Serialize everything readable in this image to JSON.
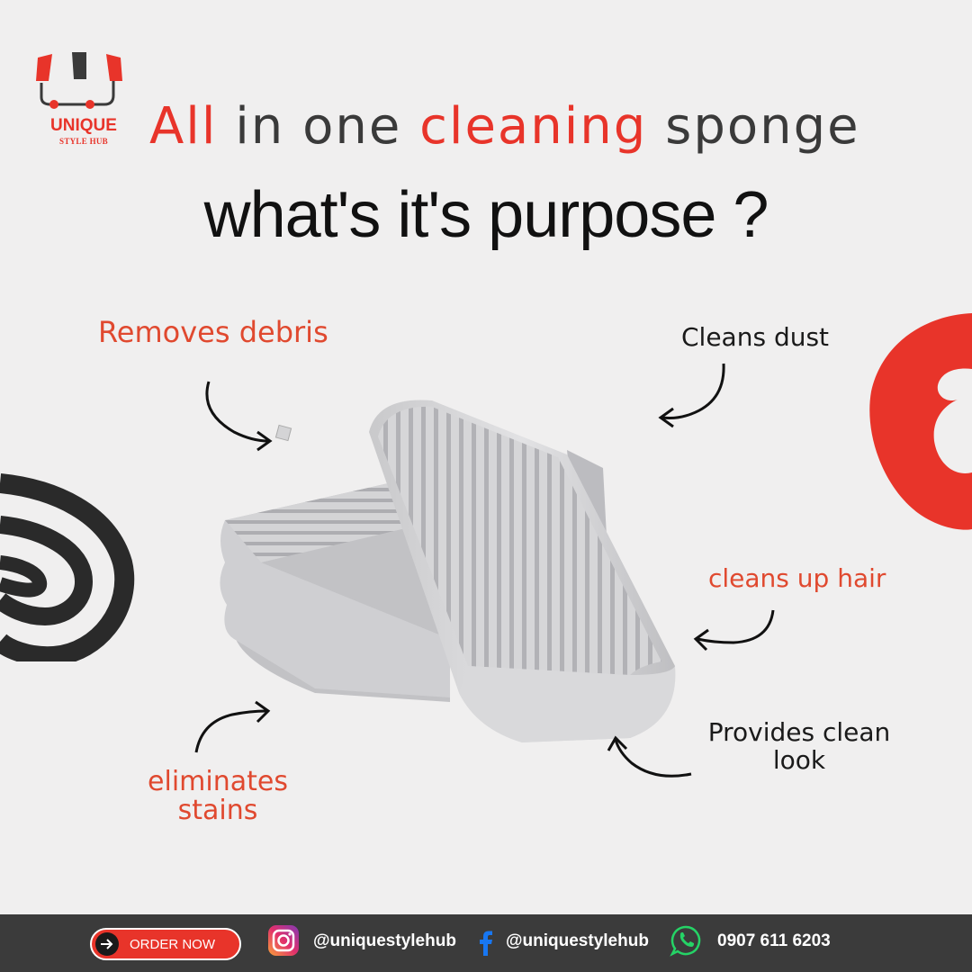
{
  "brand": {
    "name": "UNIQUE",
    "tagline": "STYLE HUB",
    "accent_color": "#e8342a"
  },
  "headline": {
    "word1": "All",
    "word2": "in one",
    "word3": "cleaning",
    "word4": "sponge"
  },
  "subheadline": "what's it's purpose ?",
  "callouts": {
    "removes_debris": "Removes debris",
    "cleans_dust": "Cleans dust",
    "cleans_hair": "cleans up hair",
    "provides_clean_line1": "Provides clean",
    "provides_clean_line2": "look",
    "eliminates_line1": "eliminates",
    "eliminates_line2": "stains"
  },
  "footer": {
    "order_label": "ORDER NOW",
    "instagram_handle": "@uniquestylehub",
    "facebook_handle": "@uniquestylehub",
    "phone": "0907 611 6203",
    "icons": [
      "arrow-right-icon",
      "instagram-icon",
      "facebook-icon",
      "whatsapp-icon"
    ]
  }
}
